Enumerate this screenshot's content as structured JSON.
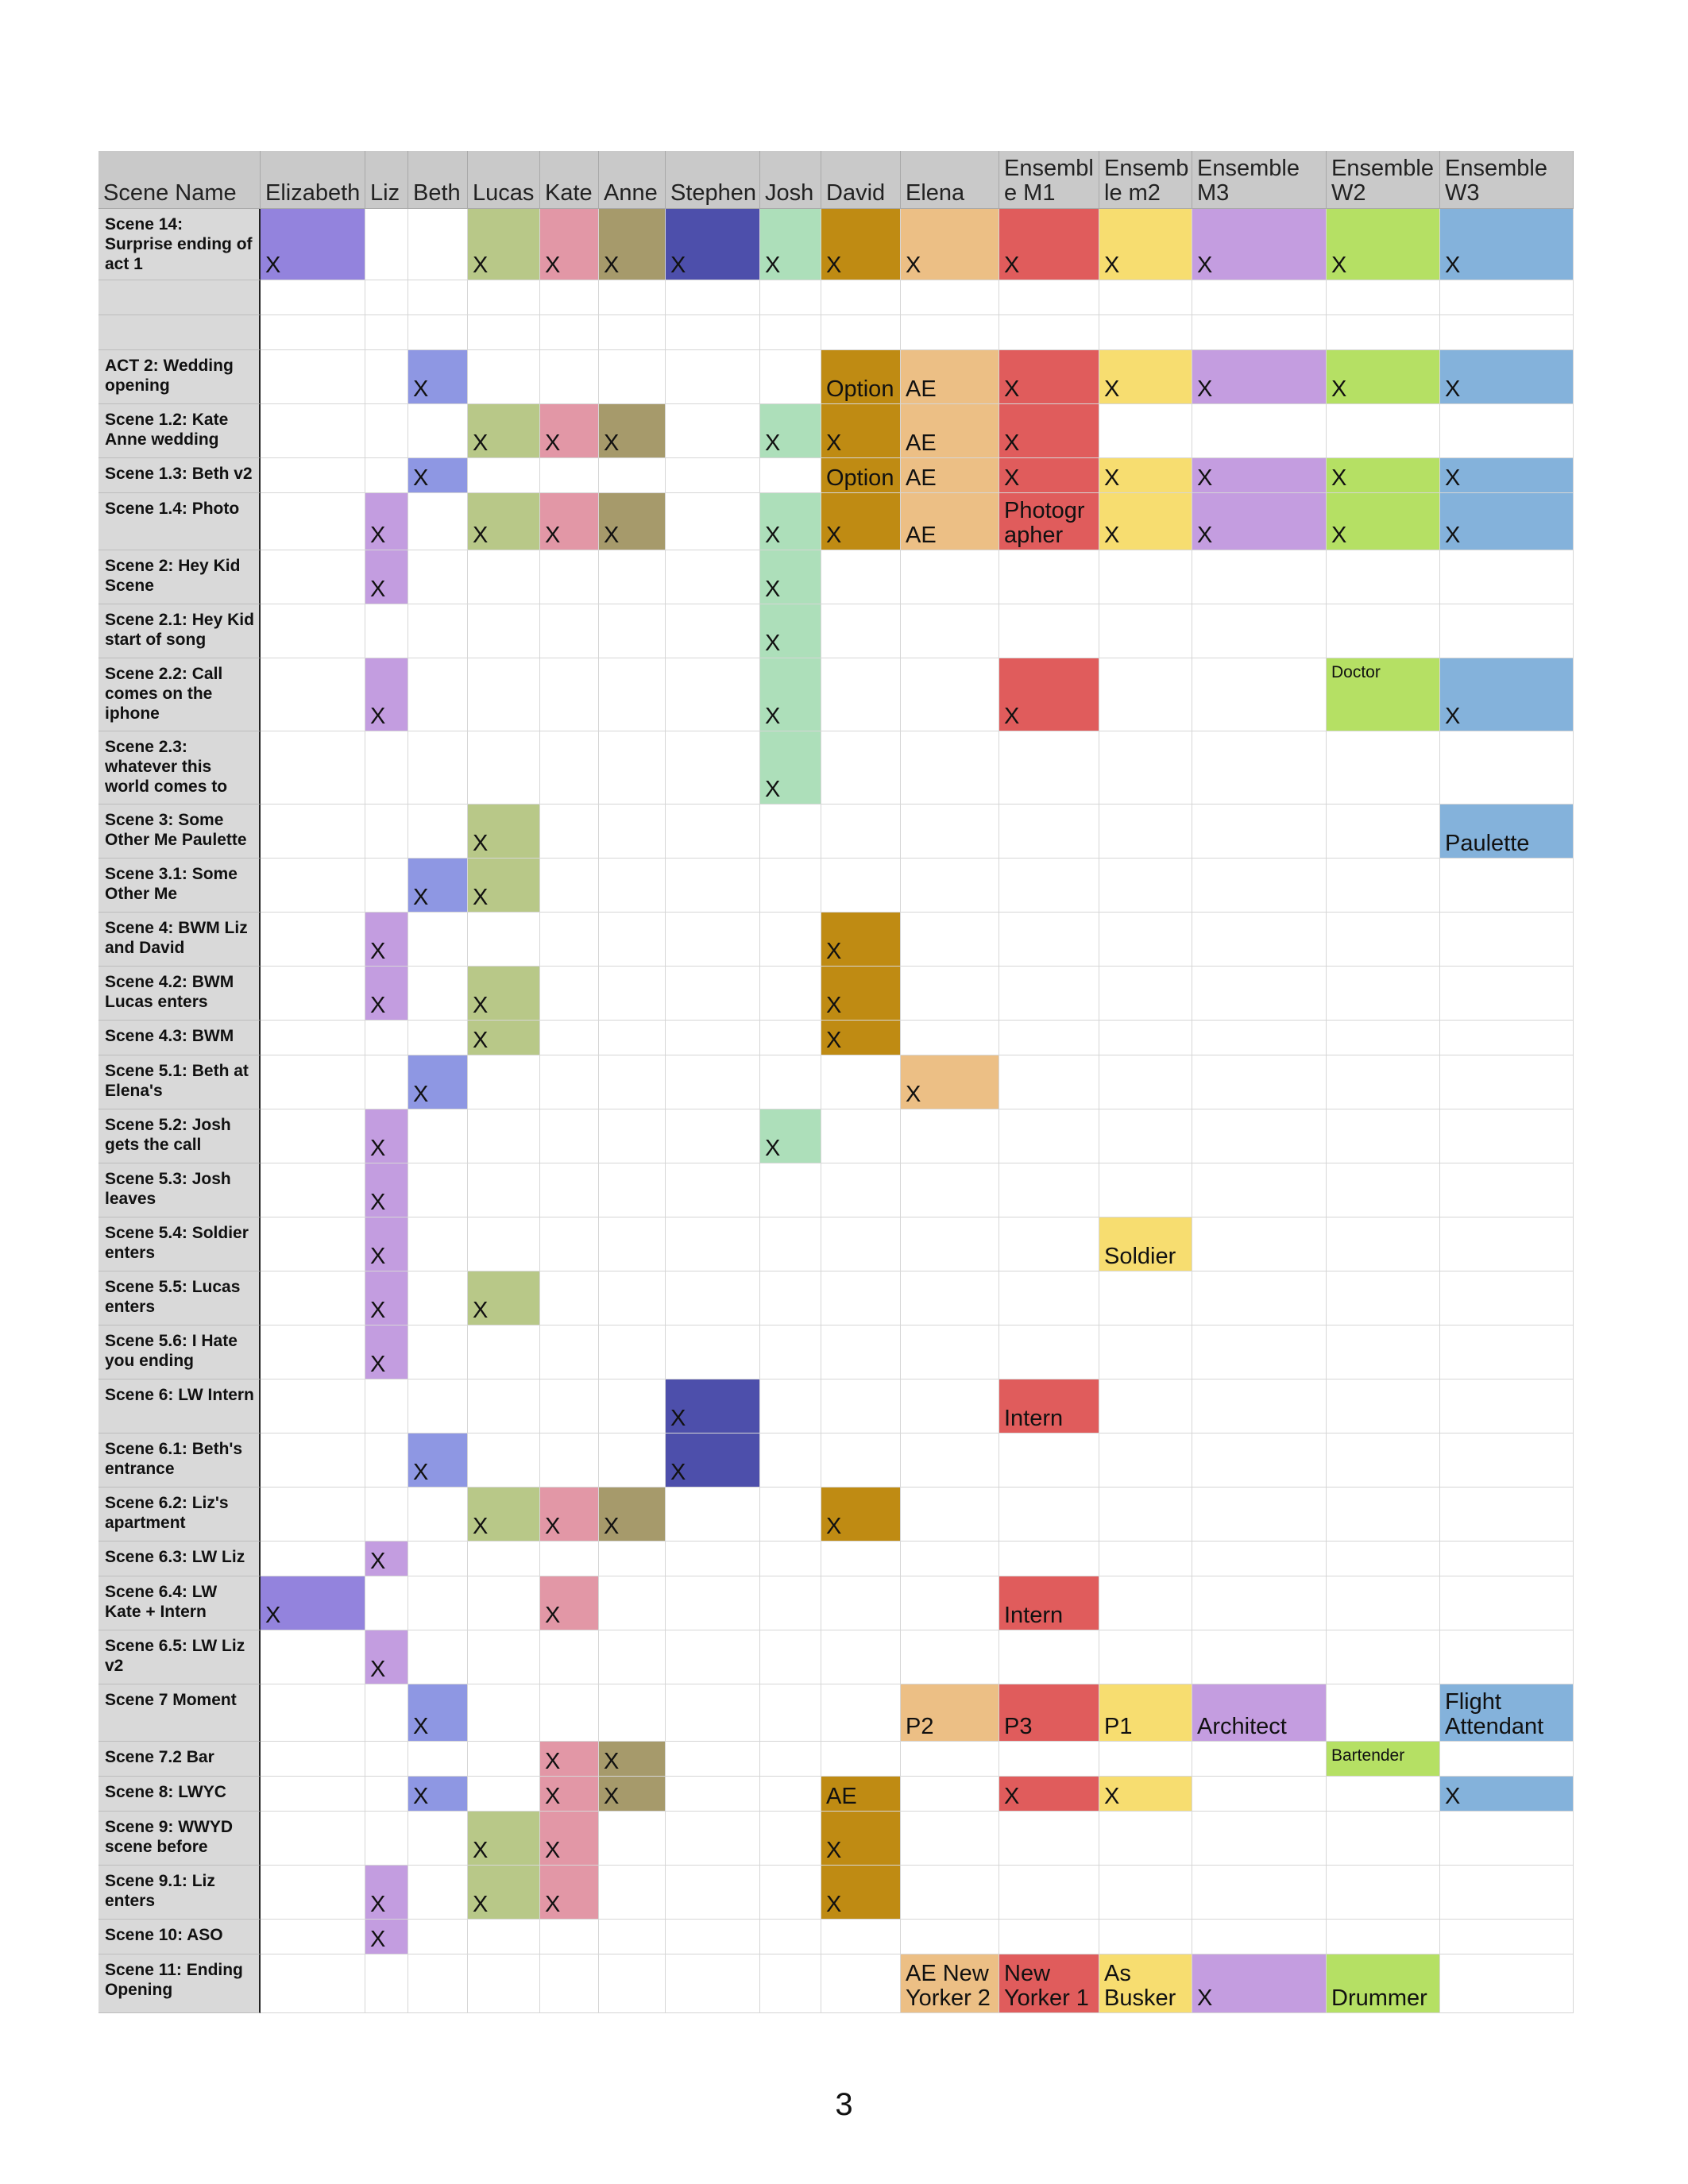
{
  "columns": [
    {
      "key": "scene",
      "label": "Scene Name",
      "color": "#d9d9d9"
    },
    {
      "key": "elizabeth",
      "label": "Elizabeth",
      "color": "#9383dd"
    },
    {
      "key": "liz",
      "label": "Liz",
      "color": "#c39de0"
    },
    {
      "key": "beth",
      "label": "Beth",
      "color": "#8e97e3"
    },
    {
      "key": "lucas",
      "label": "Lucas",
      "color": "#b8c888"
    },
    {
      "key": "kate",
      "label": "Kate",
      "color": "#e297a6"
    },
    {
      "key": "anne",
      "label": "Anne",
      "color": "#a69a6b"
    },
    {
      "key": "stephen",
      "label": "Stephen",
      "color": "#4d4fab"
    },
    {
      "key": "josh",
      "label": "Josh",
      "color": "#addfba"
    },
    {
      "key": "david",
      "label": "David",
      "color": "#bf8b13"
    },
    {
      "key": "elena",
      "label": "Elena",
      "color": "#ecbf85"
    },
    {
      "key": "em1",
      "label": "Ensembl\ne M1",
      "color": "#e05c5c"
    },
    {
      "key": "em2",
      "label": "Ensemb\nle m2",
      "color": "#f7dd70"
    },
    {
      "key": "em3",
      "label": "Ensemble\nM3",
      "color": "#c49de0"
    },
    {
      "key": "ew2",
      "label": "Ensemble\nW2",
      "color": "#b5e064"
    },
    {
      "key": "ew3",
      "label": "Ensemble\nW3",
      "color": "#84b2db"
    }
  ],
  "rows": [
    {
      "scene": "Scene 14: Surprise ending of act 1",
      "cells": {
        "elizabeth": "X",
        "lucas": "X",
        "kate": "X",
        "anne": "X",
        "stephen": "X",
        "josh": "X",
        "david": "X",
        "elena": "X",
        "em1": "X",
        "em2": "X",
        "em3": "X",
        "ew2": "X",
        "ew3": "X"
      }
    },
    {
      "scene": "",
      "cells": {}
    },
    {
      "scene": "",
      "cells": {}
    },
    {
      "scene": "ACT 2: Wedding opening",
      "cells": {
        "beth": "X",
        "david": "Option",
        "elena": "AE",
        "em1": "X",
        "em2": "X",
        "em3": "X",
        "ew2": "X",
        "ew3": "X"
      }
    },
    {
      "scene": "Scene 1.2: Kate Anne wedding",
      "cells": {
        "lucas": "X",
        "kate": "X",
        "anne": "X",
        "josh": "X",
        "david": "X",
        "elena": "AE",
        "em1": "X"
      }
    },
    {
      "scene": "Scene 1.3: Beth v2",
      "cells": {
        "beth": "X",
        "david": "Option",
        "elena": "AE",
        "em1": "X",
        "em2": "X",
        "em3": "X",
        "ew2": "X",
        "ew3": "X"
      }
    },
    {
      "scene": "Scene 1.4: Photo",
      "cells": {
        "liz": "X",
        "lucas": "X",
        "kate": "X",
        "anne": "X",
        "josh": "X",
        "david": "X",
        "elena": "AE",
        "em1": "Photogr\napher",
        "em2": "X",
        "em3": "X",
        "ew2": "X",
        "ew3": "X"
      }
    },
    {
      "scene": "Scene 2: Hey Kid Scene",
      "cells": {
        "liz": "X",
        "josh": "X"
      }
    },
    {
      "scene": "Scene 2.1: Hey Kid start of song",
      "cells": {
        "josh": "X"
      }
    },
    {
      "scene": "Scene 2.2: Call comes on the iphone",
      "cells": {
        "liz": "X",
        "josh": "X",
        "em1": "X",
        "ew2": "Doctor",
        "ew3": "X"
      }
    },
    {
      "scene": "Scene 2.3: whatever this world comes to",
      "cells": {
        "josh": "X"
      }
    },
    {
      "scene": "Scene 3: Some Other Me Paulette",
      "cells": {
        "lucas": "X",
        "ew3": "Paulette"
      }
    },
    {
      "scene": "Scene 3.1: Some Other Me",
      "cells": {
        "beth": "X",
        "lucas": "X"
      }
    },
    {
      "scene": "Scene 4: BWM Liz and David",
      "cells": {
        "liz": "X",
        "david": "X"
      }
    },
    {
      "scene": "Scene 4.2: BWM Lucas enters",
      "cells": {
        "liz": "X",
        "lucas": "X",
        "david": "X"
      }
    },
    {
      "scene": "Scene 4.3: BWM",
      "cells": {
        "lucas": "X",
        "david": "X"
      }
    },
    {
      "scene": "Scene 5.1: Beth at Elena's",
      "cells": {
        "beth": "X",
        "elena": "X"
      }
    },
    {
      "scene": "Scene 5.2: Josh gets the call",
      "cells": {
        "liz": "X",
        "josh": "X"
      }
    },
    {
      "scene": "Scene 5.3: Josh leaves",
      "cells": {
        "liz": "X"
      }
    },
    {
      "scene": "Scene 5.4: Soldier enters",
      "cells": {
        "liz": "X",
        "em2": "Soldier"
      }
    },
    {
      "scene": "Scene 5.5: Lucas enters",
      "cells": {
        "liz": "X",
        "lucas": "X"
      }
    },
    {
      "scene": "Scene 5.6: I Hate you ending",
      "cells": {
        "liz": "X"
      }
    },
    {
      "scene": "Scene 6: LW Intern",
      "cells": {
        "stephen": "X",
        "em1": "Intern"
      }
    },
    {
      "scene": "Scene 6.1: Beth's entrance",
      "cells": {
        "beth": "X",
        "stephen": "X"
      }
    },
    {
      "scene": "Scene 6.2: Liz's apartment",
      "cells": {
        "lucas": "X",
        "kate": "X",
        "anne": "X",
        "david": "X"
      }
    },
    {
      "scene": "Scene 6.3: LW Liz",
      "cells": {
        "liz": "X"
      }
    },
    {
      "scene": "Scene 6.4: LW Kate + Intern",
      "cells": {
        "elizabeth": "X",
        "kate": "X",
        "em1": "Intern"
      }
    },
    {
      "scene": "Scene 6.5: LW Liz v2",
      "cells": {
        "liz": "X"
      }
    },
    {
      "scene": "Scene 7 Moment",
      "cells": {
        "beth": "X",
        "elena": "P2",
        "em1": "P3",
        "em2": "P1",
        "em3": "Architect",
        "ew3": "Flight\nAttendant"
      }
    },
    {
      "scene": "Scene 7.2 Bar",
      "cells": {
        "kate": "X",
        "anne": "X",
        "ew2": "Bartender"
      }
    },
    {
      "scene": "Scene 8: LWYC",
      "cells": {
        "beth": "X",
        "kate": "X",
        "anne": "X",
        "david": "AE",
        "em1": "X",
        "em2": "X",
        "ew3": "X"
      }
    },
    {
      "scene": "Scene 9: WWYD scene before",
      "cells": {
        "lucas": "X",
        "kate": "X",
        "david": "X"
      }
    },
    {
      "scene": "Scene 9.1: Liz enters",
      "cells": {
        "liz": "X",
        "lucas": "X",
        "kate": "X",
        "david": "X"
      }
    },
    {
      "scene": "Scene 10: ASO",
      "cells": {
        "liz": "X"
      }
    },
    {
      "scene": "Scene 11: Ending Opening",
      "cells": {
        "elena": "AE New\nYorker 2",
        "em1": "New\nYorker 1",
        "em2": "As\nBusker",
        "em3": "X",
        "ew2": "Drummer"
      }
    }
  ],
  "small_text_cells": [
    "Doctor",
    "Bartender"
  ],
  "page_number": "3"
}
